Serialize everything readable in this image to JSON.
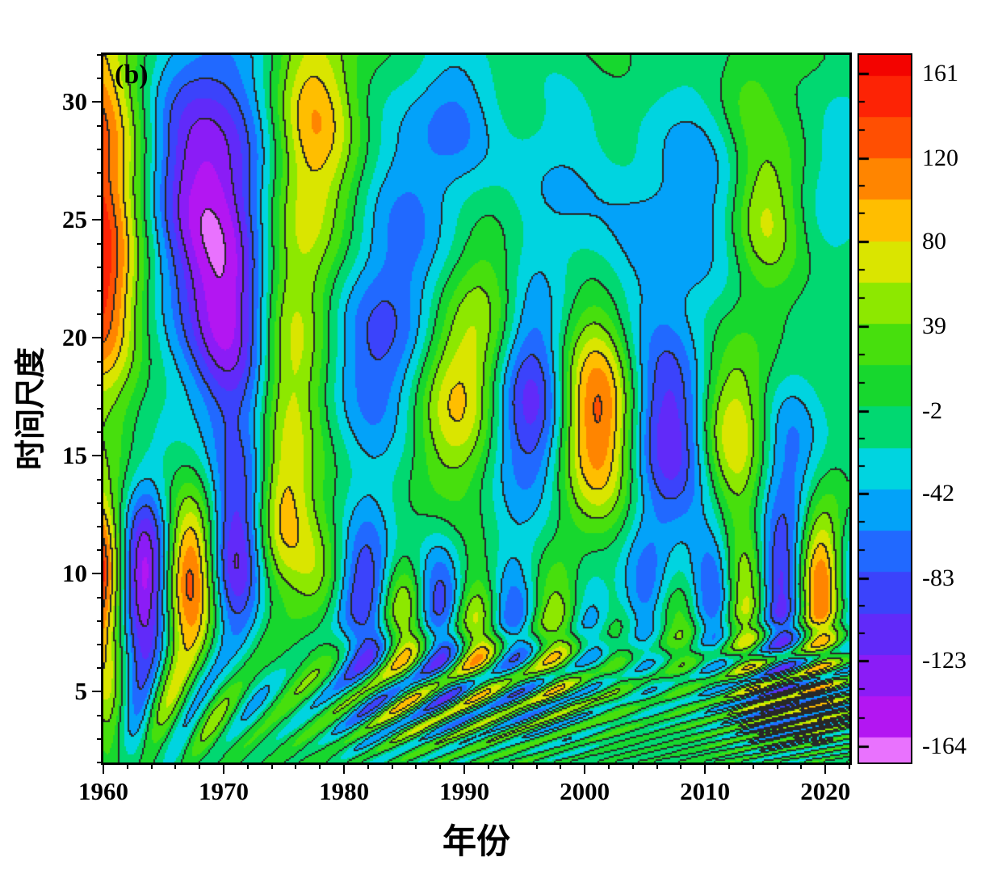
{
  "chart_data": {
    "type": "heatmap",
    "subtype": "filled-contour-wavelet",
    "panel_label": "(b)",
    "xlabel": "年份",
    "ylabel": "时间尺度",
    "x_range": [
      1960,
      2022
    ],
    "y_range": [
      2,
      32
    ],
    "x_ticks": [
      1960,
      1970,
      1980,
      1990,
      2000,
      2010,
      2020
    ],
    "x_minor_step": 2,
    "y_ticks": [
      5,
      10,
      15,
      20,
      25,
      30
    ],
    "y_minor_step": 1,
    "fill_step": 20,
    "line_step": 40,
    "colorbar": {
      "tick_labels": [
        161,
        120,
        80,
        39,
        -2,
        -42,
        -83,
        -123,
        -164
      ],
      "vmax": 170,
      "vmin": -172
    },
    "colormap_stops": [
      [
        -172,
        "#ee7bff"
      ],
      [
        -150,
        "#b316f2"
      ],
      [
        -122,
        "#7b1ef8"
      ],
      [
        -96,
        "#4337fa"
      ],
      [
        -70,
        "#2169ff"
      ],
      [
        -48,
        "#00a8f8"
      ],
      [
        -30,
        "#00d4e0"
      ],
      [
        -14,
        "#00da85"
      ],
      [
        -2,
        "#04d44a"
      ],
      [
        20,
        "#27da16"
      ],
      [
        44,
        "#74e600"
      ],
      [
        64,
        "#c8ee00"
      ],
      [
        82,
        "#ffd400"
      ],
      [
        102,
        "#ff9c00"
      ],
      [
        124,
        "#ff5c00"
      ],
      [
        148,
        "#fe2606"
      ],
      [
        170,
        "#f30300"
      ]
    ],
    "centers": [
      [
        1958.5,
        27.5,
        150,
        3.6,
        4.8
      ],
      [
        1960,
        21.5,
        95,
        2.2,
        3.0
      ],
      [
        1968.5,
        26.5,
        -145,
        4.0,
        4.6
      ],
      [
        1970.5,
        20,
        -95,
        2.5,
        3.2
      ],
      [
        1971.5,
        14.5,
        -45,
        1.8,
        2.0
      ],
      [
        1977.5,
        29.5,
        95,
        2.6,
        3.2
      ],
      [
        1976,
        23,
        70,
        2.4,
        3.2
      ],
      [
        1975.3,
        17.5,
        55,
        2.0,
        2.5
      ],
      [
        1983,
        19.5,
        -85,
        2.8,
        3.2
      ],
      [
        1986,
        26,
        -50,
        3.0,
        3.5
      ],
      [
        1989.5,
        29.5,
        -45,
        2.5,
        2.2
      ],
      [
        1992.5,
        22,
        40,
        2.0,
        2.5
      ],
      [
        1997.5,
        26,
        -42,
        3.0,
        3.2
      ],
      [
        2005,
        24,
        -42,
        2.8,
        3.0
      ],
      [
        2010.5,
        27,
        -48,
        3.0,
        3.8
      ],
      [
        2015,
        25.5,
        72,
        2.0,
        2.3
      ],
      [
        2013.5,
        30.5,
        40,
        2.0,
        1.8
      ],
      [
        2021,
        27,
        -40,
        1.8,
        2.6
      ],
      [
        1989.5,
        17.5,
        95,
        2.4,
        2.8
      ],
      [
        1995.5,
        17,
        -120,
        2.4,
        3.2
      ],
      [
        2001,
        16.5,
        140,
        2.4,
        3.2
      ],
      [
        2007,
        16,
        -120,
        2.6,
        3.2
      ],
      [
        2012.5,
        16,
        95,
        2.2,
        2.8
      ],
      [
        2017,
        15,
        -72,
        2.2,
        2.8
      ],
      [
        1959.5,
        10,
        175,
        1.7,
        2.6
      ],
      [
        1963.5,
        10,
        -175,
        1.7,
        2.6
      ],
      [
        1967.2,
        10,
        152,
        1.7,
        2.4
      ],
      [
        1971,
        10.5,
        -128,
        1.7,
        2.4
      ],
      [
        1975,
        12.5,
        92,
        1.7,
        2.2
      ],
      [
        1977.8,
        10,
        45,
        1.4,
        1.8
      ],
      [
        1981.8,
        9,
        -112,
        1.6,
        2.6
      ],
      [
        1985,
        8,
        92,
        1.4,
        1.8
      ],
      [
        1988,
        8.5,
        -102,
        1.5,
        2.2
      ],
      [
        1991,
        7.5,
        82,
        1.4,
        1.8
      ],
      [
        1994,
        8,
        -72,
        1.4,
        2.0
      ],
      [
        1997.5,
        7.5,
        68,
        1.4,
        1.8
      ],
      [
        2000.5,
        8,
        -58,
        1.4,
        2.0
      ],
      [
        2002.8,
        7,
        42,
        1.2,
        1.5
      ],
      [
        2005,
        9,
        -68,
        1.6,
        2.2
      ],
      [
        2008,
        8,
        52,
        1.4,
        1.8
      ],
      [
        2010.8,
        9,
        -92,
        1.5,
        2.4
      ],
      [
        2013.5,
        8.5,
        112,
        1.5,
        2.1
      ],
      [
        2016.5,
        9,
        -152,
        1.7,
        2.4
      ],
      [
        2019.5,
        9.5,
        172,
        1.7,
        2.4
      ],
      [
        2022,
        9.5,
        -95,
        1.3,
        2.1
      ]
    ],
    "low_scale_band": {
      "amp": 72,
      "center_scale": 4.8,
      "scale_sigma": 2.4,
      "period_base": 2.2,
      "period_slope": 0.62,
      "phase_year": 1960.3,
      "envelope_base": 0.35,
      "envelope_peaks": [
        [
          1986,
          7,
          1.0
        ],
        [
          2017,
          5,
          1.0
        ],
        [
          1966,
          6,
          0.55
        ],
        [
          1997,
          4.5,
          0.5
        ]
      ]
    },
    "texture_ripple": {
      "amp": 9
    }
  }
}
